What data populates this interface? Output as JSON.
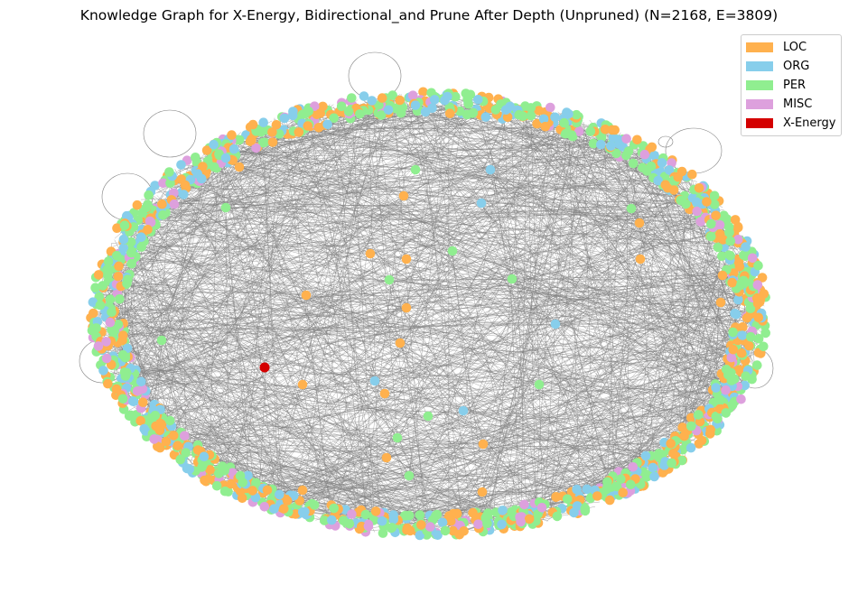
{
  "title": "Knowledge Graph for X-Energy, Bidirectional_and Prune After Depth (Unpruned) (N=2168, E=3809)",
  "legend": [
    {
      "label": "LOC",
      "color": "#FFB14E"
    },
    {
      "label": "ORG",
      "color": "#87CEEB"
    },
    {
      "label": "PER",
      "color": "#90EE90"
    },
    {
      "label": "MISC",
      "color": "#DDA0DD"
    },
    {
      "label": "X-Energy",
      "color": "#D40000"
    }
  ],
  "edge_color": "#808080",
  "highlight_node": {
    "label": "X-Energy",
    "type": "X-Energy"
  }
}
